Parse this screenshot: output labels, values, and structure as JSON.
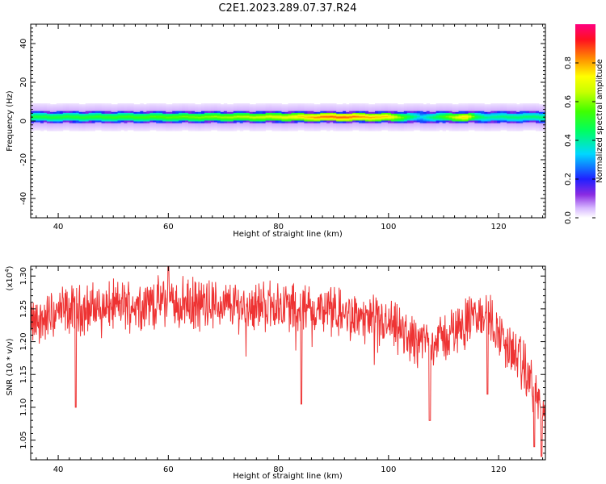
{
  "title": "C2E1.2023.289.07.37.R24",
  "chart_data": [
    {
      "type": "heatmap",
      "xlabel": "Height of straight line (km)",
      "ylabel": "Frequency (Hz)",
      "xlim": [
        35,
        128.5
      ],
      "ylim": [
        -50,
        50
      ],
      "x_ticks": [
        40,
        60,
        80,
        100,
        120
      ],
      "y_ticks": [
        -40,
        -20,
        0,
        20,
        40
      ],
      "colorbar": {
        "label": "Normalized spectral amplitude",
        "range": [
          0,
          1
        ],
        "ticks": [
          0.0,
          0.2,
          0.4,
          0.6,
          0.8
        ]
      },
      "band": {
        "center_hz": 2,
        "core_half_width_hz": 2,
        "halo_half_width_hz": 7,
        "profile": [
          {
            "x": 35,
            "amp": 0.5
          },
          {
            "x": 45,
            "amp": 0.52
          },
          {
            "x": 55,
            "amp": 0.55
          },
          {
            "x": 65,
            "amp": 0.6
          },
          {
            "x": 75,
            "amp": 0.66
          },
          {
            "x": 82,
            "amp": 0.72
          },
          {
            "x": 88,
            "amp": 0.86
          },
          {
            "x": 92,
            "amp": 0.88
          },
          {
            "x": 96,
            "amp": 0.82
          },
          {
            "x": 100,
            "amp": 0.78
          },
          {
            "x": 103,
            "amp": 0.55
          },
          {
            "x": 106,
            "amp": 0.35
          },
          {
            "x": 110,
            "amp": 0.55
          },
          {
            "x": 114,
            "amp": 0.8
          },
          {
            "x": 116,
            "amp": 0.5
          },
          {
            "x": 118,
            "amp": 0.42
          },
          {
            "x": 122,
            "amp": 0.45
          },
          {
            "x": 128.5,
            "amp": 0.45
          }
        ]
      }
    },
    {
      "type": "line",
      "xlabel": "Height of straight line (km)",
      "ylabel": "SNR (10 * v/v)",
      "scale_note": "(x10",
      "scale_exp": "4",
      "xlim": [
        35,
        128.5
      ],
      "ylim": [
        1.02,
        1.315
      ],
      "x_ticks": [
        40,
        60,
        80,
        100,
        120
      ],
      "y_ticks": [
        1.05,
        1.1,
        1.15,
        1.2,
        1.25,
        1.3
      ],
      "y_tick_labels": [
        "1.05",
        "1.10",
        "1.15",
        "1.20",
        "1.25",
        "1.30"
      ],
      "color": "#ee3333",
      "trend": [
        {
          "x": 35,
          "y": 1.225
        },
        {
          "x": 40,
          "y": 1.245
        },
        {
          "x": 50,
          "y": 1.255
        },
        {
          "x": 60,
          "y": 1.26
        },
        {
          "x": 70,
          "y": 1.255
        },
        {
          "x": 80,
          "y": 1.255
        },
        {
          "x": 90,
          "y": 1.245
        },
        {
          "x": 100,
          "y": 1.225
        },
        {
          "x": 105,
          "y": 1.2
        },
        {
          "x": 110,
          "y": 1.205
        },
        {
          "x": 115,
          "y": 1.235
        },
        {
          "x": 118,
          "y": 1.24
        },
        {
          "x": 121,
          "y": 1.2
        },
        {
          "x": 124,
          "y": 1.17
        },
        {
          "x": 127,
          "y": 1.12
        },
        {
          "x": 128.5,
          "y": 1.07
        }
      ],
      "dips": [
        {
          "x": 43.2,
          "y": 1.1
        },
        {
          "x": 84.2,
          "y": 1.105
        },
        {
          "x": 107.5,
          "y": 1.08
        },
        {
          "x": 118.0,
          "y": 1.12
        },
        {
          "x": 126.5,
          "y": 1.04
        },
        {
          "x": 127.8,
          "y": 1.025
        }
      ],
      "peak": {
        "x": 60,
        "y": 1.315
      }
    }
  ]
}
